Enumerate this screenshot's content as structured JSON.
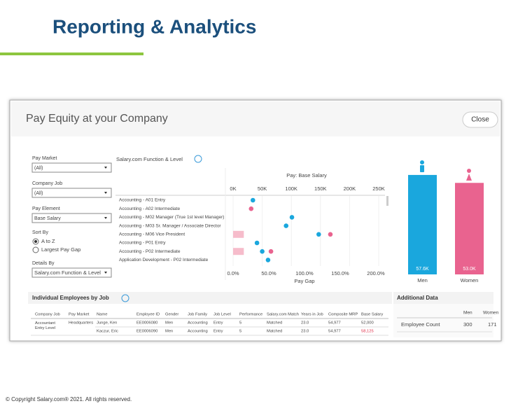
{
  "header": {
    "title": "Reporting & Analytics"
  },
  "dashboard": {
    "title": "Pay Equity at your Company",
    "close": "Close",
    "filters": [
      {
        "label": "Pay Market",
        "value": "(All)"
      },
      {
        "label": "Company Job",
        "value": "(All)"
      },
      {
        "label": "Pay Element",
        "value": "Base Salary"
      }
    ],
    "sort": {
      "label": "Sort By",
      "options": [
        "A to Z",
        "Largest Pay Gap"
      ],
      "selected": 0
    },
    "details": {
      "label": "Details By",
      "value": "Salary.com Function & Level"
    },
    "tab": "Salary.com Function & Level"
  },
  "chart_data": [
    {
      "type": "dot",
      "title": "Pay: Base Salary",
      "x_label": "Pay Gap",
      "categories": [
        "Accounting - A01 Entry",
        "Accounting - A02 Intermediate",
        "Accounting - M02 Manager (True 1st level Manager)",
        "Accounting - M03 Sr. Manager / Associate Director",
        "Accounting - M06 Vice President",
        "Accounting - P01 Entry",
        "Accounting - P02 Intermediate",
        "Application Development - P02 Intermediate"
      ],
      "xlim": [
        0,
        250
      ],
      "xticks": [
        {
          "value": 0,
          "label": "0K"
        },
        {
          "value": 50,
          "label": "50K"
        },
        {
          "value": 100,
          "label": "100K"
        },
        {
          "value": 150,
          "label": "150K"
        },
        {
          "value": 200,
          "label": "200K"
        },
        {
          "value": 250,
          "label": "250K"
        }
      ],
      "series": [
        {
          "color": "#1aa7dd",
          "values": [
            34,
            null,
            101,
            91,
            147,
            41,
            50,
            60
          ]
        },
        {
          "color": "#e9638f",
          "values": [
            null,
            31,
            null,
            null,
            167,
            null,
            65,
            null
          ]
        }
      ],
      "gap": {
        "color": "#f6bccb",
        "values": [
          null,
          null,
          null,
          null,
          15,
          null,
          15,
          null
        ]
      },
      "x2lim": [
        0,
        200
      ],
      "x2ticks": [
        {
          "value": 0,
          "label": "0.0%"
        },
        {
          "value": 50,
          "label": "50.0%"
        },
        {
          "value": 100,
          "label": "100.0%"
        },
        {
          "value": 150,
          "label": "150.0%"
        },
        {
          "value": 200,
          "label": "200.0%"
        }
      ]
    },
    {
      "type": "bar",
      "categories": [
        "Men",
        "Women"
      ],
      "values": [
        57.6,
        53.0
      ],
      "value_labels": [
        "57.6K",
        "53.0K"
      ],
      "colors": [
        "#1aa7dd",
        "#e9638f"
      ],
      "ylim": [
        0,
        60
      ]
    }
  ],
  "employees_table": {
    "title": "Individual Employees by Job",
    "columns": [
      "Company Job",
      "Pay Market",
      "Name",
      "Employee ID",
      "Gender",
      "Job Family",
      "Job Level",
      "Performance",
      "Salary.com Match",
      "Years in Job",
      "Composite MRP",
      "Base Salary"
    ],
    "rows": [
      [
        "Accountant Entry Level",
        "Headquarters",
        "Junge, Ken",
        "EE0006080",
        "Men",
        "Accounting",
        "Entry",
        "5",
        "Matched",
        "23.0",
        "54,977",
        "52,000"
      ],
      [
        null,
        null,
        "Kaczur, Eric",
        "EE0006090",
        "Men",
        "Accounting",
        "Entry",
        "5",
        "Matched",
        "23.0",
        "54,977",
        "58,125"
      ]
    ]
  },
  "additional_data": {
    "title": "Additional Data",
    "columns": [
      "Men",
      "Women"
    ],
    "rows": [
      {
        "label": "Employee Count",
        "values": [
          300,
          171
        ]
      }
    ]
  },
  "footer": "© Copyright Salary.com® 2021. All rights reserved."
}
